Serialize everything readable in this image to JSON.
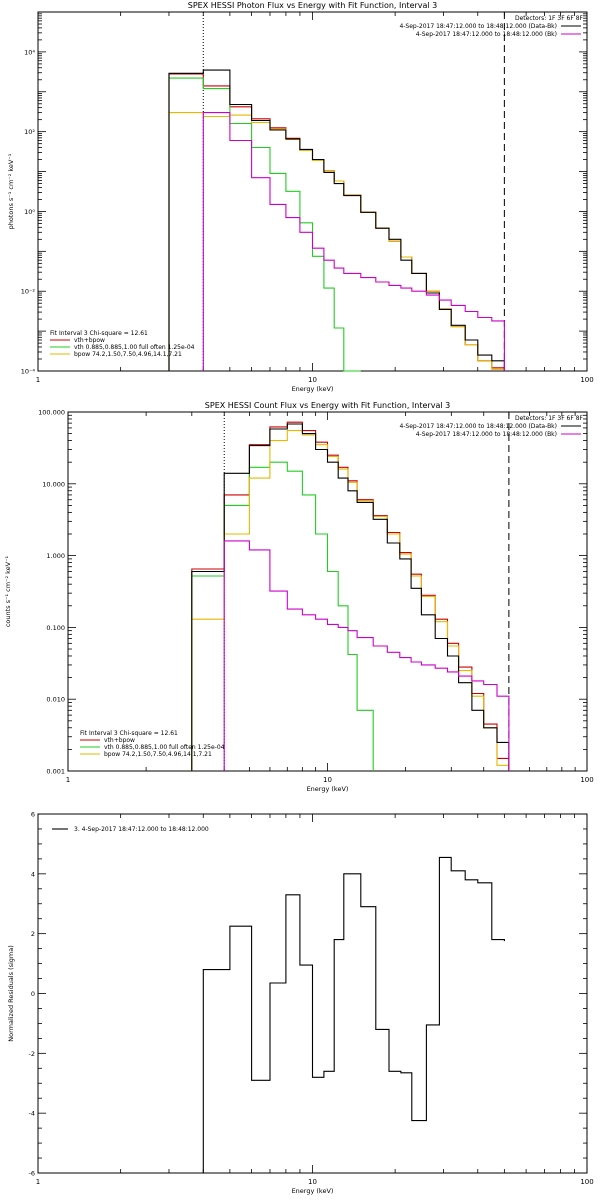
{
  "colors": {
    "data": "#000000",
    "model": "#cc0000",
    "vth": "#22cc22",
    "bpow": "#e6b800",
    "bk": "#cc00cc"
  },
  "chart_data": [
    {
      "type": "line",
      "title": "SPEX HESSI Photon Flux vs Energy with Fit Function, Interval 3",
      "xlabel": "Energy (keV)",
      "ylabel": "photons s⁻¹ cm⁻² keV⁻¹",
      "xscale": "log",
      "yscale": "log",
      "xlim": [
        1,
        100
      ],
      "ylim": [
        0.0001,
        100000
      ],
      "xticks": [
        {
          "v": 1,
          "label": "1"
        },
        {
          "v": 10,
          "label": "10"
        },
        {
          "v": 100,
          "label": "100"
        }
      ],
      "yticks": [
        {
          "v": 0.0001,
          "label": "10⁻⁴"
        },
        {
          "v": 0.01,
          "label": "10⁻²"
        },
        {
          "v": 1,
          "label": "10⁰"
        },
        {
          "v": 100,
          "label": "10²"
        },
        {
          "v": 10000,
          "label": "10⁴"
        }
      ],
      "vlines": [
        {
          "x": 4,
          "style": "dotted"
        },
        {
          "x": 50,
          "style": "dashed"
        }
      ],
      "edges": [
        3,
        4,
        5,
        6,
        7,
        8,
        9,
        10,
        11,
        12,
        13,
        15,
        17,
        19,
        21,
        23,
        26,
        29,
        32,
        36,
        40,
        45,
        50
      ],
      "series": [
        {
          "name": "vth+bpow",
          "key": "model",
          "values": [
            2800,
            1400,
            420,
            210,
            125,
            68,
            34,
            19,
            10.5,
            5.8,
            2.6,
            0.95,
            0.38,
            0.18,
            0.072,
            0.028,
            0.01,
            0.0036,
            0.0013,
            0.00045,
            0.00018,
            0.00012
          ]
        },
        {
          "name": "vth 0.885,0.885,1.00  full often 1.25e-04",
          "key": "vth",
          "values": [
            2200,
            1200,
            160,
            40,
            9,
            3.2,
            0.52,
            0.075,
            0.012,
            0.0012,
            0.0001,
            null,
            null,
            null,
            null,
            null,
            null,
            null,
            null,
            null,
            null,
            null
          ]
        },
        {
          "name": "bpow 74.2,1.50,7.50,4.96,14.1,7.21",
          "key": "bpow",
          "values": [
            300,
            240,
            260,
            170,
            115,
            64,
            34,
            19,
            10.5,
            5.8,
            2.6,
            0.95,
            0.38,
            0.18,
            0.072,
            0.028,
            0.01,
            0.0036,
            0.0013,
            0.00045,
            0.00018,
            0.00011
          ]
        },
        {
          "name": "4-Sep-2017 18:47:12.000 to 18:48:12.000 (Data-Bk)",
          "key": "data",
          "values": [
            2900,
            3500,
            480,
            190,
            110,
            66,
            36,
            20,
            9.5,
            5,
            2.5,
            0.95,
            0.38,
            0.2,
            0.06,
            0.028,
            0.009,
            0.0035,
            0.0014,
            0.0006,
            0.00025,
            0.00018
          ]
        },
        {
          "name": "4-Sep-2017 18:47:12.000 to 18:48:12.000 (Bk)",
          "key": "bk",
          "values": [
            null,
            300,
            60,
            7,
            1.5,
            0.7,
            0.3,
            0.12,
            0.06,
            0.038,
            0.028,
            0.022,
            0.017,
            0.014,
            0.012,
            0.01,
            0.008,
            0.006,
            0.0044,
            0.0031,
            0.0022,
            0.0018
          ]
        }
      ],
      "detectors": "Detectors: 1F 3F 6F 8F",
      "fit_label": "Fit Interval 3   Chi-square = 12.61",
      "legend": {
        "placement": "bottom-left",
        "items": [
          {
            "key": "model",
            "label": "vth+bpow"
          },
          {
            "key": "vth",
            "label": "vth 0.885,0.885,1.00  full often 1.25e-04"
          },
          {
            "key": "bpow",
            "label": "bpow 74.2,1.50,7.50,4.96,14.1,7.21"
          }
        ]
      },
      "legend_top": {
        "placement": "top-right",
        "items": [
          {
            "key": "data",
            "label": "4-Sep-2017 18:47:12.000 to 18:48:12.000 (Data-Bk)"
          },
          {
            "key": "bk",
            "label": "4-Sep-2017 18:47:12.000 to 18:48:12.000 (Bk)"
          }
        ]
      }
    },
    {
      "type": "line",
      "title": "SPEX HESSI Count Flux vs Energy with Fit Function, Interval 3",
      "xlabel": "Energy (keV)",
      "ylabel": "counts s⁻¹ cm⁻² keV⁻¹",
      "xscale": "log",
      "yscale": "log",
      "xlim": [
        1,
        100
      ],
      "ylim": [
        0.001,
        100
      ],
      "xticks": [
        {
          "v": 1,
          "label": "1"
        },
        {
          "v": 10,
          "label": "10"
        },
        {
          "v": 100,
          "label": "100"
        }
      ],
      "yticks": [
        {
          "v": 0.001,
          "label": "0.001"
        },
        {
          "v": 0.01,
          "label": "0.010"
        },
        {
          "v": 0.1,
          "label": "0.100"
        },
        {
          "v": 1,
          "label": "1.000"
        },
        {
          "v": 10,
          "label": "10.000"
        },
        {
          "v": 100,
          "label": "100.000"
        }
      ],
      "vlines": [
        {
          "x": 4,
          "style": "dotted"
        },
        {
          "x": 50,
          "style": "dashed"
        }
      ],
      "edges": [
        3,
        4,
        5,
        6,
        7,
        8,
        9,
        10,
        11,
        12,
        13,
        15,
        17,
        19,
        21,
        23,
        26,
        29,
        32,
        36,
        40,
        45,
        50
      ],
      "series": [
        {
          "name": "vth+bpow",
          "key": "model",
          "values": [
            0.65,
            7,
            35,
            62,
            72,
            55,
            38,
            25,
            17,
            11,
            6,
            3.6,
            2.1,
            1.1,
            0.55,
            0.28,
            0.13,
            0.06,
            0.028,
            0.012,
            0.0045,
            0.0015
          ]
        },
        {
          "name": "vth 0.885,0.885,1.00  full often 1.25e-04",
          "key": "vth",
          "values": [
            0.52,
            5,
            17,
            20,
            15,
            7,
            2,
            0.6,
            0.2,
            0.042,
            0.007,
            null,
            null,
            null,
            null,
            null,
            null,
            null,
            null,
            null,
            null,
            null
          ]
        },
        {
          "name": "bpow 74.2,1.50,7.50,4.96,14.1,7.21",
          "key": "bpow",
          "values": [
            0.13,
            2,
            12,
            40,
            55,
            48,
            35,
            24,
            16,
            10.5,
            5.8,
            3.5,
            2,
            1.05,
            0.52,
            0.27,
            0.12,
            0.055,
            0.025,
            0.011,
            0.004,
            0.0012
          ]
        },
        {
          "name": "4-Sep-2017 18:47:12.000 to 18:48:12.000 (Data-Bk)",
          "key": "data",
          "values": [
            0.6,
            14,
            34,
            58,
            68,
            50,
            30,
            20,
            12,
            8,
            5.5,
            3.2,
            1.5,
            0.9,
            0.35,
            0.15,
            0.07,
            0.04,
            0.017,
            0.007,
            0.004,
            0.0025
          ]
        },
        {
          "name": "4-Sep-2017 18:47:12.000 to 18:48:12.000 (Bk)",
          "key": "bk",
          "values": [
            null,
            1.6,
            1.2,
            0.32,
            0.18,
            0.15,
            0.13,
            0.11,
            0.1,
            0.09,
            0.072,
            0.055,
            0.045,
            0.038,
            0.033,
            0.03,
            0.027,
            0.024,
            0.021,
            0.018,
            0.016,
            0.011
          ]
        }
      ],
      "detectors": "Detectors: 1F 3F 6F 8F",
      "fit_label": "Fit Interval 3   Chi-square = 12.61",
      "legend": {
        "placement": "bottom-left",
        "items": [
          {
            "key": "model",
            "label": "vth+bpow"
          },
          {
            "key": "vth",
            "label": "vth 0.885,0.885,1.00  full often 1.25e-04"
          },
          {
            "key": "bpow",
            "label": "bpow 74.2,1.50,7.50,4.96,14.1,7.21"
          }
        ]
      },
      "legend_top": {
        "placement": "top-right",
        "items": [
          {
            "key": "data",
            "label": "4-Sep-2017 18:47:12.000 to 18:48:12.000 (Data-Bk)"
          },
          {
            "key": "bk",
            "label": "4-Sep-2017 18:47:12.000 to 18:48:12.000 (Bk)"
          }
        ]
      }
    },
    {
      "type": "line",
      "title": "",
      "xlabel": "Energy (keV)",
      "ylabel": "Normalized Residuals (sigma)",
      "xscale": "log",
      "yscale": "linear",
      "xlim": [
        1,
        100
      ],
      "ylim": [
        -6,
        6
      ],
      "xticks": [
        {
          "v": 1,
          "label": "1"
        },
        {
          "v": 10,
          "label": "10"
        },
        {
          "v": 100,
          "label": "100"
        }
      ],
      "yticks": [
        {
          "v": -6,
          "label": "-6"
        },
        {
          "v": -4,
          "label": "-4"
        },
        {
          "v": -2,
          "label": "-2"
        },
        {
          "v": 0,
          "label": "0"
        },
        {
          "v": 2,
          "label": "2"
        },
        {
          "v": 4,
          "label": "4"
        },
        {
          "v": 6,
          "label": "6"
        }
      ],
      "vlines": [],
      "edges": [
        4,
        5,
        6,
        7,
        8,
        9,
        10,
        11,
        12,
        13,
        15,
        17,
        19,
        21,
        23,
        26,
        29,
        32,
        36,
        40,
        45,
        50
      ],
      "series": [
        {
          "name": "3.  4-Sep-2017 18:47:12.000 to 18:48:12.000",
          "key": "data",
          "values": [
            0.8,
            2.25,
            -2.9,
            0.35,
            3.3,
            0.95,
            -2.8,
            -2.6,
            1.8,
            4.0,
            2.9,
            -1.2,
            -2.6,
            -2.65,
            -4.25,
            -1.05,
            4.55,
            4.1,
            3.8,
            3.7,
            1.8,
            1.75
          ]
        }
      ],
      "legend": {
        "placement": "top-left",
        "items": [
          {
            "key": "data",
            "label": "3.  4-Sep-2017 18:47:12.000 to 18:48:12.000"
          }
        ]
      }
    }
  ]
}
